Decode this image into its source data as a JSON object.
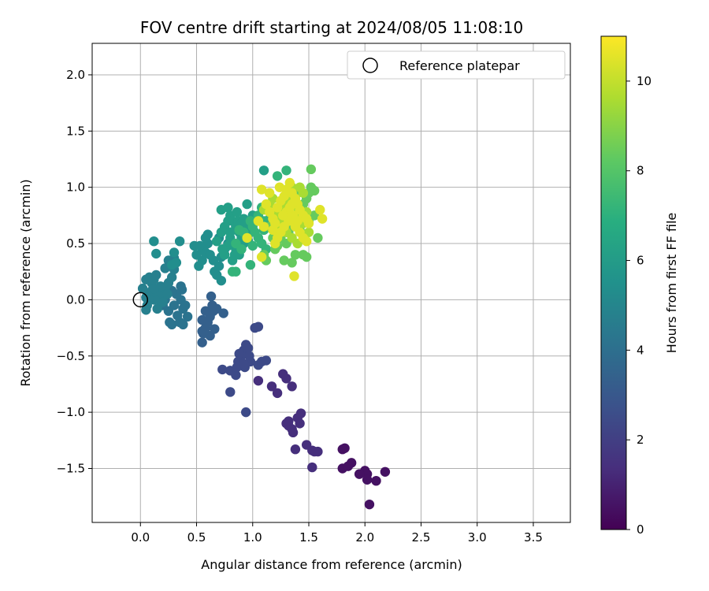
{
  "chart_data": {
    "type": "scatter",
    "title": "FOV centre drift starting at 2024/08/05 11:08:10",
    "xlabel": "Angular distance from reference (arcmin)",
    "ylabel": "Rotation from reference (arcmin)",
    "xlim": [
      -0.43,
      3.83
    ],
    "ylim": [
      -1.98,
      2.28
    ],
    "xticks": [
      "0.0",
      "0.5",
      "1.0",
      "1.5",
      "2.0",
      "2.5",
      "3.0",
      "3.5"
    ],
    "yticks": [
      "−1.5",
      "−1.0",
      "−0.5",
      "0.0",
      "0.5",
      "1.0",
      "1.5",
      "2.0"
    ],
    "grid": true,
    "legend": {
      "position": "top-right",
      "entries": [
        {
          "label": "Reference platepar",
          "marker": "open-circle"
        }
      ]
    },
    "reference_point": {
      "x": 0.0,
      "y": 0.0
    },
    "colorbar": {
      "label": "Hours from first FF file",
      "range": [
        0,
        11
      ],
      "ticks": [
        "0",
        "2",
        "4",
        "6",
        "8",
        "10"
      ],
      "colormap": "viridis"
    },
    "point_groups": [
      {
        "hours": 0.5,
        "points": [
          [
            1.88,
            -1.45
          ],
          [
            1.8,
            -1.5
          ],
          [
            1.82,
            -1.32
          ],
          [
            1.8,
            -1.33
          ],
          [
            2.0,
            -1.52
          ],
          [
            2.02,
            -1.55
          ],
          [
            2.02,
            -1.6
          ],
          [
            2.1,
            -1.61
          ],
          [
            2.18,
            -1.53
          ],
          [
            2.04,
            -1.82
          ],
          [
            1.95,
            -1.55
          ],
          [
            1.85,
            -1.48
          ]
        ]
      },
      {
        "hours": 1.5,
        "points": [
          [
            1.3,
            -1.1
          ],
          [
            1.32,
            -1.12
          ],
          [
            1.35,
            -1.15
          ],
          [
            1.36,
            -1.18
          ],
          [
            1.4,
            -1.05
          ],
          [
            1.43,
            -1.01
          ],
          [
            1.42,
            -1.1
          ],
          [
            1.38,
            -1.33
          ],
          [
            1.48,
            -1.29
          ],
          [
            1.53,
            -1.34
          ],
          [
            1.55,
            -1.35
          ],
          [
            1.58,
            -1.35
          ],
          [
            1.53,
            -1.49
          ],
          [
            1.35,
            -0.77
          ],
          [
            1.3,
            -0.7
          ],
          [
            1.27,
            -0.66
          ],
          [
            1.17,
            -0.77
          ],
          [
            1.22,
            -0.83
          ],
          [
            1.05,
            -0.72
          ],
          [
            1.32,
            -1.08
          ]
        ]
      },
      {
        "hours": 2.5,
        "points": [
          [
            0.94,
            -1.0
          ],
          [
            0.8,
            -0.82
          ],
          [
            0.73,
            -0.62
          ],
          [
            0.8,
            -0.63
          ],
          [
            0.85,
            -0.67
          ],
          [
            0.87,
            -0.55
          ],
          [
            0.9,
            -0.5
          ],
          [
            0.92,
            -0.45
          ],
          [
            0.94,
            -0.4
          ],
          [
            0.96,
            -0.43
          ],
          [
            0.93,
            -0.6
          ],
          [
            0.98,
            -0.55
          ],
          [
            1.02,
            -0.25
          ],
          [
            1.05,
            -0.24
          ],
          [
            1.05,
            -0.58
          ],
          [
            1.08,
            -0.55
          ],
          [
            1.12,
            -0.54
          ],
          [
            0.88,
            -0.48
          ],
          [
            0.86,
            -0.6
          ],
          [
            0.97,
            -0.5
          ],
          [
            0.92,
            -0.57
          ]
        ]
      },
      {
        "hours": 3.4,
        "points": [
          [
            0.55,
            -0.38
          ],
          [
            0.56,
            -0.3
          ],
          [
            0.58,
            -0.25
          ],
          [
            0.55,
            -0.28
          ],
          [
            0.62,
            -0.32
          ],
          [
            0.6,
            -0.2
          ],
          [
            0.62,
            -0.15
          ],
          [
            0.65,
            -0.1
          ],
          [
            0.68,
            -0.08
          ],
          [
            0.63,
            0.03
          ],
          [
            0.58,
            -0.1
          ],
          [
            0.64,
            -0.05
          ],
          [
            0.74,
            -0.12
          ],
          [
            0.55,
            -0.18
          ],
          [
            0.66,
            -0.26
          ]
        ]
      },
      {
        "hours": 4.2,
        "points": [
          [
            0.26,
            -0.2
          ],
          [
            0.28,
            -0.22
          ],
          [
            0.35,
            -0.2
          ],
          [
            0.33,
            -0.14
          ],
          [
            0.38,
            -0.08
          ],
          [
            0.36,
            0.0
          ],
          [
            0.4,
            -0.05
          ],
          [
            0.36,
            0.12
          ],
          [
            0.37,
            0.09
          ],
          [
            0.25,
            -0.1
          ],
          [
            0.3,
            -0.05
          ],
          [
            0.22,
            0.0
          ],
          [
            0.38,
            -0.22
          ],
          [
            0.42,
            -0.15
          ],
          [
            0.2,
            -0.05
          ],
          [
            0.32,
            0.05
          ],
          [
            0.28,
            0.08
          ]
        ]
      },
      {
        "hours": 4.8,
        "points": [
          [
            0.05,
            0.02
          ],
          [
            0.08,
            0.05
          ],
          [
            0.1,
            0.08
          ],
          [
            0.12,
            0.0
          ],
          [
            0.06,
            -0.05
          ],
          [
            0.05,
            -0.09
          ],
          [
            0.15,
            -0.08
          ],
          [
            0.15,
            0.05
          ],
          [
            0.16,
            0.0
          ],
          [
            0.2,
            0.05
          ],
          [
            0.22,
            0.1
          ],
          [
            0.18,
            0.12
          ],
          [
            0.2,
            -0.02
          ],
          [
            0.1,
            0.15
          ],
          [
            0.05,
            0.18
          ],
          [
            0.08,
            0.2
          ],
          [
            0.12,
            0.18
          ],
          [
            0.25,
            0.15
          ],
          [
            0.28,
            0.2
          ],
          [
            0.25,
            0.35
          ],
          [
            0.3,
            0.37
          ],
          [
            0.22,
            0.28
          ],
          [
            0.3,
            0.27
          ],
          [
            0.12,
            0.1
          ],
          [
            0.02,
            0.1
          ],
          [
            0.14,
            0.22
          ],
          [
            0.24,
            0.05
          ]
        ]
      },
      {
        "hours": 5.4,
        "points": [
          [
            0.12,
            0.52
          ],
          [
            0.14,
            0.41
          ],
          [
            0.35,
            0.52
          ],
          [
            0.32,
            0.33
          ],
          [
            0.28,
            0.31
          ],
          [
            0.3,
            0.42
          ],
          [
            0.48,
            0.48
          ],
          [
            0.52,
            0.3
          ],
          [
            0.55,
            0.35
          ],
          [
            0.58,
            0.42
          ],
          [
            0.6,
            0.5
          ],
          [
            0.58,
            0.55
          ],
          [
            0.6,
            0.58
          ],
          [
            0.55,
            0.45
          ],
          [
            0.62,
            0.4
          ],
          [
            0.65,
            0.35
          ],
          [
            0.68,
            0.22
          ],
          [
            0.66,
            0.25
          ],
          [
            0.7,
            0.3
          ],
          [
            0.72,
            0.38
          ],
          [
            0.75,
            0.45
          ],
          [
            0.78,
            0.5
          ],
          [
            0.7,
            0.55
          ],
          [
            0.5,
            0.4
          ],
          [
            0.53,
            0.48
          ],
          [
            0.72,
            0.17
          ]
        ]
      },
      {
        "hours": 6.2,
        "points": [
          [
            0.72,
            0.6
          ],
          [
            0.75,
            0.65
          ],
          [
            0.78,
            0.7
          ],
          [
            0.8,
            0.75
          ],
          [
            0.82,
            0.7
          ],
          [
            0.85,
            0.65
          ],
          [
            0.88,
            0.6
          ],
          [
            0.9,
            0.55
          ],
          [
            0.92,
            0.5
          ],
          [
            0.8,
            0.55
          ],
          [
            0.78,
            0.48
          ],
          [
            0.85,
            0.45
          ],
          [
            0.88,
            0.4
          ],
          [
            0.75,
            0.4
          ],
          [
            0.82,
            0.35
          ],
          [
            0.72,
            0.8
          ],
          [
            0.78,
            0.82
          ],
          [
            0.8,
            0.6
          ],
          [
            0.87,
            0.7
          ],
          [
            0.95,
            0.65
          ],
          [
            0.98,
            0.6
          ],
          [
            0.95,
            0.85
          ],
          [
            1.0,
            0.75
          ],
          [
            1.02,
            0.7
          ],
          [
            0.92,
            0.72
          ],
          [
            1.1,
            1.15
          ],
          [
            0.68,
            0.52
          ],
          [
            0.73,
            0.45
          ],
          [
            0.84,
            0.4
          ],
          [
            0.9,
            0.68
          ],
          [
            0.96,
            0.52
          ],
          [
            0.86,
            0.78
          ]
        ]
      },
      {
        "hours": 7.2,
        "points": [
          [
            0.85,
            0.5
          ],
          [
            0.9,
            0.45
          ],
          [
            0.92,
            0.6
          ],
          [
            0.95,
            0.55
          ],
          [
            0.98,
            0.7
          ],
          [
            1.0,
            0.65
          ],
          [
            1.02,
            0.6
          ],
          [
            1.05,
            0.55
          ],
          [
            1.08,
            0.5
          ],
          [
            1.1,
            0.62
          ],
          [
            1.12,
            0.45
          ],
          [
            1.05,
            0.75
          ],
          [
            1.08,
            0.82
          ],
          [
            1.1,
            0.7
          ],
          [
            1.15,
            0.72
          ],
          [
            0.82,
            0.25
          ],
          [
            0.85,
            0.25
          ],
          [
            0.98,
            0.31
          ],
          [
            1.25,
            0.75
          ],
          [
            1.28,
            0.7
          ],
          [
            1.22,
            1.1
          ],
          [
            1.3,
            1.15
          ],
          [
            0.88,
            0.62
          ],
          [
            1.0,
            0.48
          ]
        ]
      },
      {
        "hours": 8.4,
        "points": [
          [
            1.1,
            0.4
          ],
          [
            1.12,
            0.35
          ],
          [
            1.2,
            0.45
          ],
          [
            1.25,
            0.55
          ],
          [
            1.3,
            0.5
          ],
          [
            1.32,
            0.6
          ],
          [
            1.35,
            0.65
          ],
          [
            1.38,
            0.7
          ],
          [
            1.4,
            0.75
          ],
          [
            1.42,
            0.8
          ],
          [
            1.45,
            0.85
          ],
          [
            1.48,
            0.9
          ],
          [
            1.5,
            0.95
          ],
          [
            1.52,
            1.0
          ],
          [
            1.55,
            0.97
          ],
          [
            1.52,
            1.16
          ],
          [
            1.45,
            0.4
          ],
          [
            1.48,
            0.38
          ],
          [
            1.38,
            0.4
          ],
          [
            1.35,
            0.33
          ],
          [
            1.28,
            0.35
          ],
          [
            1.58,
            0.55
          ],
          [
            1.55,
            0.75
          ],
          [
            1.15,
            0.65
          ],
          [
            1.18,
            0.55
          ],
          [
            1.22,
            0.48
          ],
          [
            1.42,
            0.62
          ],
          [
            1.5,
            0.7
          ],
          [
            1.4,
            0.95
          ],
          [
            1.33,
            0.88
          ]
        ]
      },
      {
        "hours": 9.6,
        "points": [
          [
            1.1,
            0.8
          ],
          [
            1.15,
            0.85
          ],
          [
            1.18,
            0.9
          ],
          [
            1.2,
            0.75
          ],
          [
            1.22,
            0.7
          ],
          [
            1.25,
            0.8
          ],
          [
            1.28,
            0.85
          ],
          [
            1.3,
            0.9
          ],
          [
            1.32,
            0.95
          ],
          [
            1.35,
            1.0
          ],
          [
            1.38,
            0.88
          ],
          [
            1.4,
            0.82
          ],
          [
            1.42,
            0.72
          ],
          [
            1.45,
            0.68
          ],
          [
            1.48,
            0.78
          ],
          [
            1.5,
            0.6
          ],
          [
            1.3,
            0.6
          ],
          [
            1.35,
            0.55
          ],
          [
            1.4,
            0.5
          ],
          [
            1.2,
            0.62
          ],
          [
            1.25,
            0.68
          ],
          [
            1.45,
            0.95
          ],
          [
            1.42,
            1.0
          ]
        ]
      },
      {
        "hours": 10.5,
        "points": [
          [
            1.08,
            0.98
          ],
          [
            1.12,
            0.85
          ],
          [
            1.15,
            0.78
          ],
          [
            1.18,
            0.72
          ],
          [
            1.2,
            0.68
          ],
          [
            1.22,
            0.82
          ],
          [
            1.25,
            0.88
          ],
          [
            1.28,
            0.92
          ],
          [
            1.3,
            0.98
          ],
          [
            1.33,
            1.04
          ],
          [
            1.35,
            0.95
          ],
          [
            1.38,
            0.9
          ],
          [
            1.4,
            0.85
          ],
          [
            1.42,
            0.8
          ],
          [
            1.45,
            0.75
          ],
          [
            1.48,
            0.72
          ],
          [
            1.5,
            0.68
          ],
          [
            1.36,
            0.75
          ],
          [
            1.32,
            0.7
          ],
          [
            1.28,
            0.65
          ],
          [
            1.25,
            0.6
          ],
          [
            1.22,
            0.55
          ],
          [
            1.2,
            0.5
          ],
          [
            1.38,
            0.65
          ],
          [
            1.42,
            0.6
          ],
          [
            1.45,
            0.55
          ],
          [
            1.48,
            0.52
          ],
          [
            1.6,
            0.8
          ],
          [
            1.62,
            0.72
          ],
          [
            1.37,
            0.21
          ],
          [
            1.08,
            0.38
          ],
          [
            1.05,
            0.7
          ],
          [
            1.1,
            0.65
          ],
          [
            0.95,
            0.55
          ],
          [
            1.35,
            0.85
          ],
          [
            1.4,
            0.7
          ],
          [
            1.3,
            0.78
          ],
          [
            1.18,
            0.62
          ],
          [
            1.27,
            0.75
          ],
          [
            1.33,
            0.82
          ],
          [
            1.24,
            1.0
          ],
          [
            1.15,
            0.95
          ]
        ]
      }
    ]
  }
}
